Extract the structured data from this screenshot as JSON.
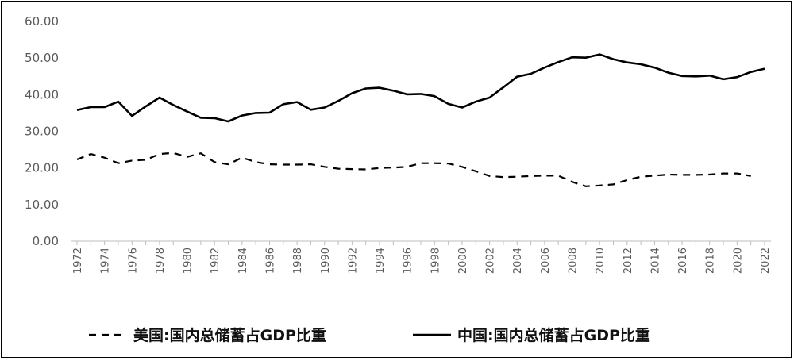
{
  "chart_data": {
    "type": "line",
    "title": "",
    "xlabel": "",
    "ylabel": "",
    "ylim": [
      0,
      60
    ],
    "yticks": [
      "0.00",
      "10.00",
      "20.00",
      "30.00",
      "40.00",
      "50.00",
      "60.00"
    ],
    "x": [
      1972,
      1973,
      1974,
      1975,
      1976,
      1977,
      1978,
      1979,
      1980,
      1981,
      1982,
      1983,
      1984,
      1985,
      1986,
      1987,
      1988,
      1989,
      1990,
      1991,
      1992,
      1993,
      1994,
      1995,
      1996,
      1997,
      1998,
      1999,
      2000,
      2001,
      2002,
      2003,
      2004,
      2005,
      2006,
      2007,
      2008,
      2009,
      2010,
      2011,
      2012,
      2013,
      2014,
      2015,
      2016,
      2017,
      2018,
      2019,
      2020,
      2021,
      2022
    ],
    "xtick_labels": [
      "1972",
      "1974",
      "1976",
      "1978",
      "1980",
      "1982",
      "1984",
      "1986",
      "1988",
      "1990",
      "1992",
      "1994",
      "1996",
      "1998",
      "2000",
      "2002",
      "2004",
      "2006",
      "2008",
      "2010",
      "2012",
      "2014",
      "2016",
      "2018",
      "2020",
      "2022"
    ],
    "legend_position": "bottom",
    "grid": false,
    "series": [
      {
        "name": "美国:国内总储蓄占GDP比重",
        "style": "dashed",
        "color": "#000000",
        "values": [
          22.3,
          23.8,
          22.8,
          21.3,
          22.0,
          22.2,
          23.8,
          24.1,
          23.0,
          24.0,
          21.6,
          21.0,
          22.8,
          21.6,
          21.0,
          20.9,
          20.9,
          21.0,
          20.3,
          19.8,
          19.7,
          19.6,
          20.0,
          20.1,
          20.3,
          21.3,
          21.3,
          21.2,
          20.3,
          19.1,
          17.8,
          17.5,
          17.6,
          17.8,
          17.9,
          17.9,
          16.2,
          15.0,
          15.2,
          15.5,
          16.7,
          17.6,
          17.9,
          18.2,
          18.1,
          18.1,
          18.2,
          18.5,
          18.5,
          17.8,
          null
        ]
      },
      {
        "name": "中国:国内总储蓄占GDP比重",
        "style": "solid",
        "color": "#000000",
        "values": [
          35.8,
          36.6,
          36.6,
          38.1,
          34.2,
          36.8,
          39.2,
          37.2,
          35.4,
          33.7,
          33.6,
          32.7,
          34.3,
          35.0,
          35.1,
          37.4,
          38.0,
          35.9,
          36.5,
          38.3,
          40.4,
          41.7,
          41.9,
          41.1,
          40.1,
          40.2,
          39.6,
          37.5,
          36.5,
          38.1,
          39.2,
          42.0,
          44.9,
          45.7,
          47.4,
          48.9,
          50.2,
          50.1,
          51.0,
          49.7,
          48.8,
          48.3,
          47.4,
          46.0,
          45.1,
          45.0,
          45.2,
          44.2,
          44.8,
          46.2,
          47.1
        ]
      }
    ]
  }
}
